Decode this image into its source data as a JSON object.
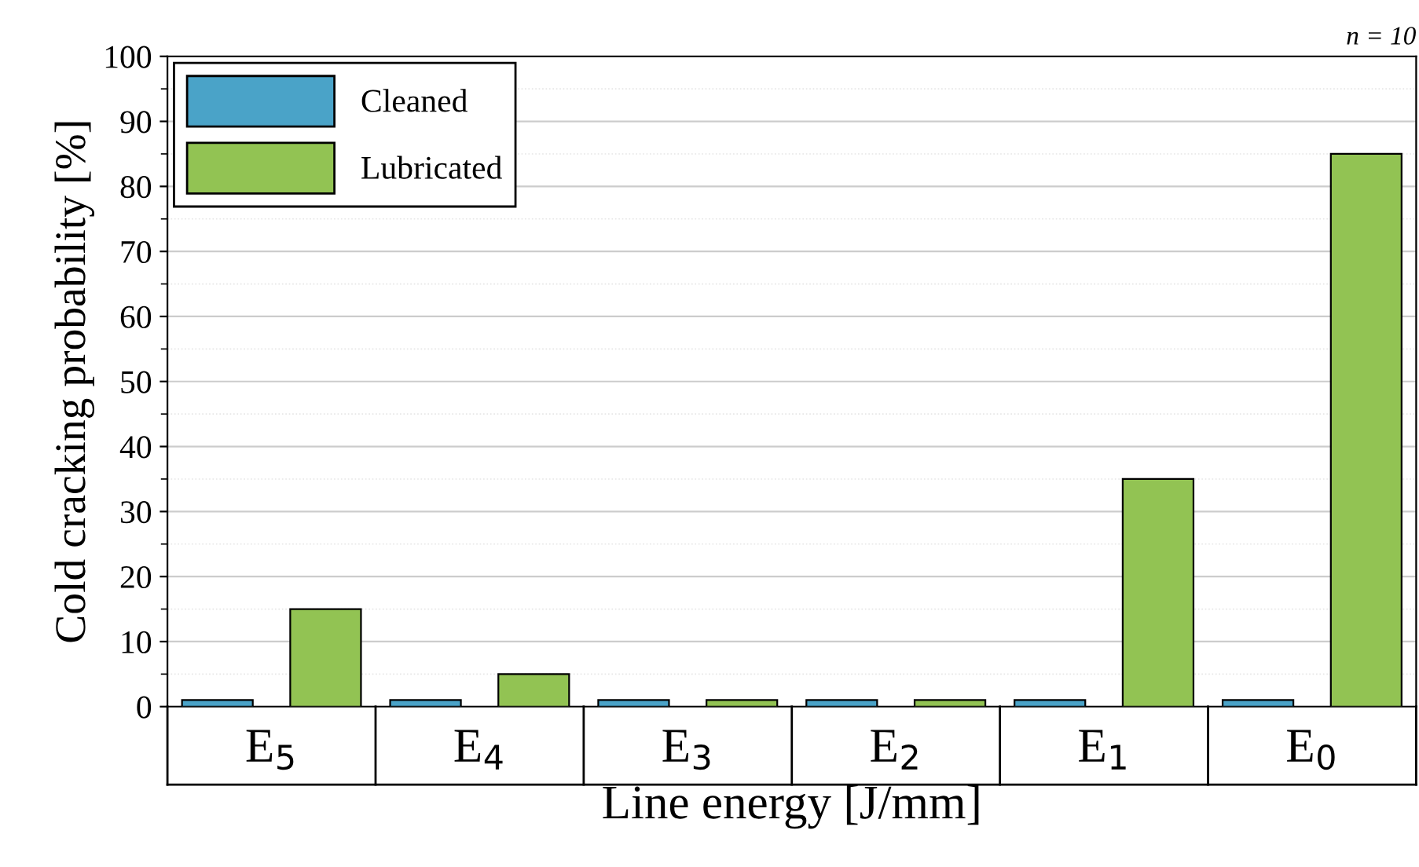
{
  "chart_data": {
    "type": "bar",
    "xlabel": "Line energy [J/mm]",
    "ylabel": "Cold cracking probability [%]",
    "categories": [
      "E$_{5}$",
      "E$_{4}$",
      "E$_{3}$",
      "E$_{2}$",
      "E$_{1}$",
      "E$_{0}$"
    ],
    "series": [
      {
        "name": "Cleaned",
        "color": "#4aa3c8",
        "values": [
          1,
          1,
          1,
          1,
          1,
          1
        ]
      },
      {
        "name": "Lubricated",
        "color": "#92c353",
        "values": [
          15,
          5,
          1,
          1,
          35,
          85
        ]
      }
    ],
    "ylim": [
      0,
      100
    ],
    "yticks": [
      0,
      10,
      20,
      30,
      40,
      50,
      60,
      70,
      80,
      90,
      100
    ],
    "grid": "y",
    "legend": "top left",
    "annotations": [
      "n = 10"
    ]
  }
}
